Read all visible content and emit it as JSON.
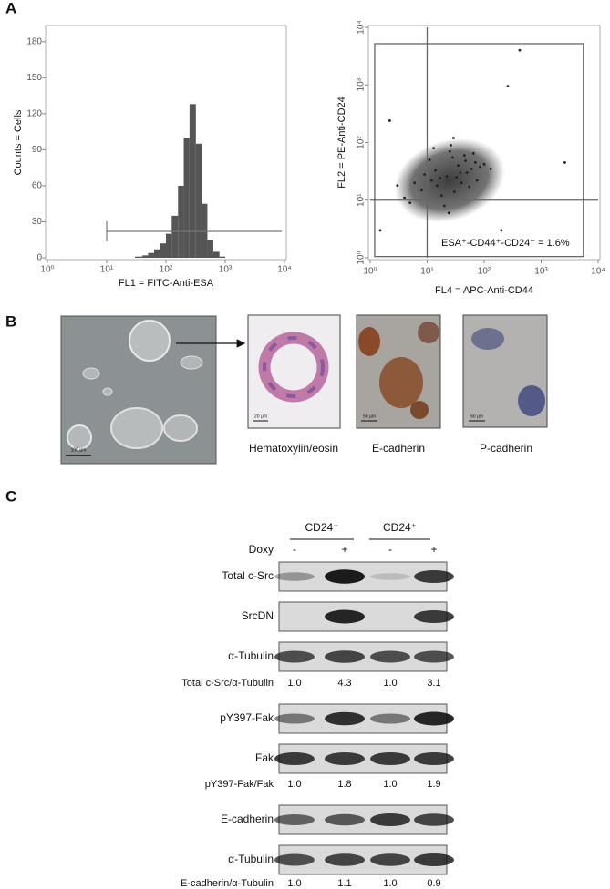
{
  "panel_labels": [
    "A",
    "B",
    "C"
  ],
  "chart_data": [
    {
      "type": "histogram",
      "xlabel": "FL1 = FITC-Anti-ESA",
      "ylabel": "Counts = Cells",
      "xscale": "log",
      "xlim": [
        1,
        10000
      ],
      "ylim": [
        0,
        192
      ],
      "xticks": [
        {
          "value": 1,
          "label": "10⁰"
        },
        {
          "value": 10,
          "label": "10¹"
        },
        {
          "value": 100,
          "label": "10²"
        },
        {
          "value": 1000,
          "label": "10³"
        },
        {
          "value": 10000,
          "label": "10⁴"
        }
      ],
      "yticks": [
        0,
        30,
        60,
        90,
        120,
        150,
        180
      ],
      "bins": [
        30,
        40,
        50,
        63,
        80,
        100,
        125,
        160,
        200,
        250,
        320,
        400,
        500,
        630,
        800,
        1000
      ],
      "counts": [
        1,
        2,
        4,
        7,
        12,
        20,
        35,
        60,
        100,
        128,
        95,
        45,
        15,
        5,
        1
      ],
      "color": "#555555",
      "marker": {
        "range": [
          10,
          9000
        ],
        "level": 22
      }
    },
    {
      "type": "scatter",
      "xlabel": "FL4 = APC-Anti-CD44",
      "ylabel": "FL2 = PE-Anti-CD24",
      "xscale": "log",
      "yscale": "log",
      "xlim": [
        1,
        10000
      ],
      "ylim": [
        1,
        10000
      ],
      "xticks": [
        {
          "value": 1,
          "label": "10⁰"
        },
        {
          "value": 10,
          "label": "10¹"
        },
        {
          "value": 100,
          "label": "10²"
        },
        {
          "value": 1000,
          "label": "10³"
        },
        {
          "value": 10000,
          "label": "10⁴"
        }
      ],
      "yticks": [
        {
          "value": 1,
          "label": "10⁰"
        },
        {
          "value": 10,
          "label": "10¹"
        },
        {
          "value": 100,
          "label": "10²"
        },
        {
          "value": 1000,
          "label": "10³"
        },
        {
          "value": 10000,
          "label": "10⁴"
        }
      ],
      "x": [
        22,
        15,
        35,
        8,
        50,
        28,
        12,
        60,
        18,
        40,
        25,
        9,
        70,
        30,
        14,
        45,
        20,
        6,
        85,
        33,
        11,
        55,
        26,
        4,
        100,
        38,
        17,
        65,
        24,
        3,
        130,
        47,
        13,
        75,
        29,
        5,
        420,
        260,
        2.2,
        2600,
        200,
        1.5
      ],
      "y": [
        26,
        18,
        40,
        15,
        30,
        55,
        22,
        35,
        12,
        20,
        70,
        28,
        45,
        14,
        33,
        60,
        8,
        20,
        38,
        25,
        50,
        17,
        90,
        11,
        42,
        30,
        24,
        65,
        6,
        18,
        35,
        48,
        80,
        22,
        120,
        9,
        4000,
        950,
        240,
        45,
        3,
        3
      ],
      "color": "#222222",
      "quadrant": {
        "x": 10,
        "y": 10
      },
      "gate_box": {
        "x": [
          1.2,
          5500
        ],
        "y": [
          1.05,
          5200
        ]
      },
      "annotation": "ESA⁺-CD44⁺-CD24⁻ = 1.6%"
    }
  ],
  "panel_b": {
    "captions": [
      "Hematoxylin/eosin",
      "E-cadherin",
      "P-cadherin"
    ],
    "scale_bars": [
      "100 µm",
      "20 µm",
      "50 µm",
      "50 µm"
    ]
  },
  "panel_c": {
    "groups": [
      {
        "name": "CD24⁻",
        "doxy": [
          "-",
          "+"
        ]
      },
      {
        "name": "CD24⁺",
        "doxy": [
          "-",
          "+"
        ]
      }
    ],
    "treatment_label": "Doxy",
    "blots": [
      "Total c-Src",
      "SrcDN",
      "α-Tubulin",
      "pY397-Fak",
      "Fak",
      "E-cadherin",
      "α-Tubulin"
    ],
    "ratios": [
      {
        "label": "Total c-Src/α-Tubulin",
        "values": [
          1,
          4.3,
          1,
          3.1
        ],
        "value_labels": [
          "1.0",
          "4.3",
          "1.0",
          "3.1"
        ]
      },
      {
        "label": "pY397-Fak/Fak",
        "values": [
          1,
          1.8,
          1,
          1.9
        ],
        "value_labels": [
          "1.0",
          "1.8",
          "1.0",
          "1.9"
        ]
      },
      {
        "label": "E-cadherin/α-Tubulin",
        "values": [
          1,
          1.1,
          1,
          0.9
        ],
        "value_labels": [
          "1.0",
          "1.1",
          "1.0",
          "0.9"
        ]
      }
    ]
  }
}
